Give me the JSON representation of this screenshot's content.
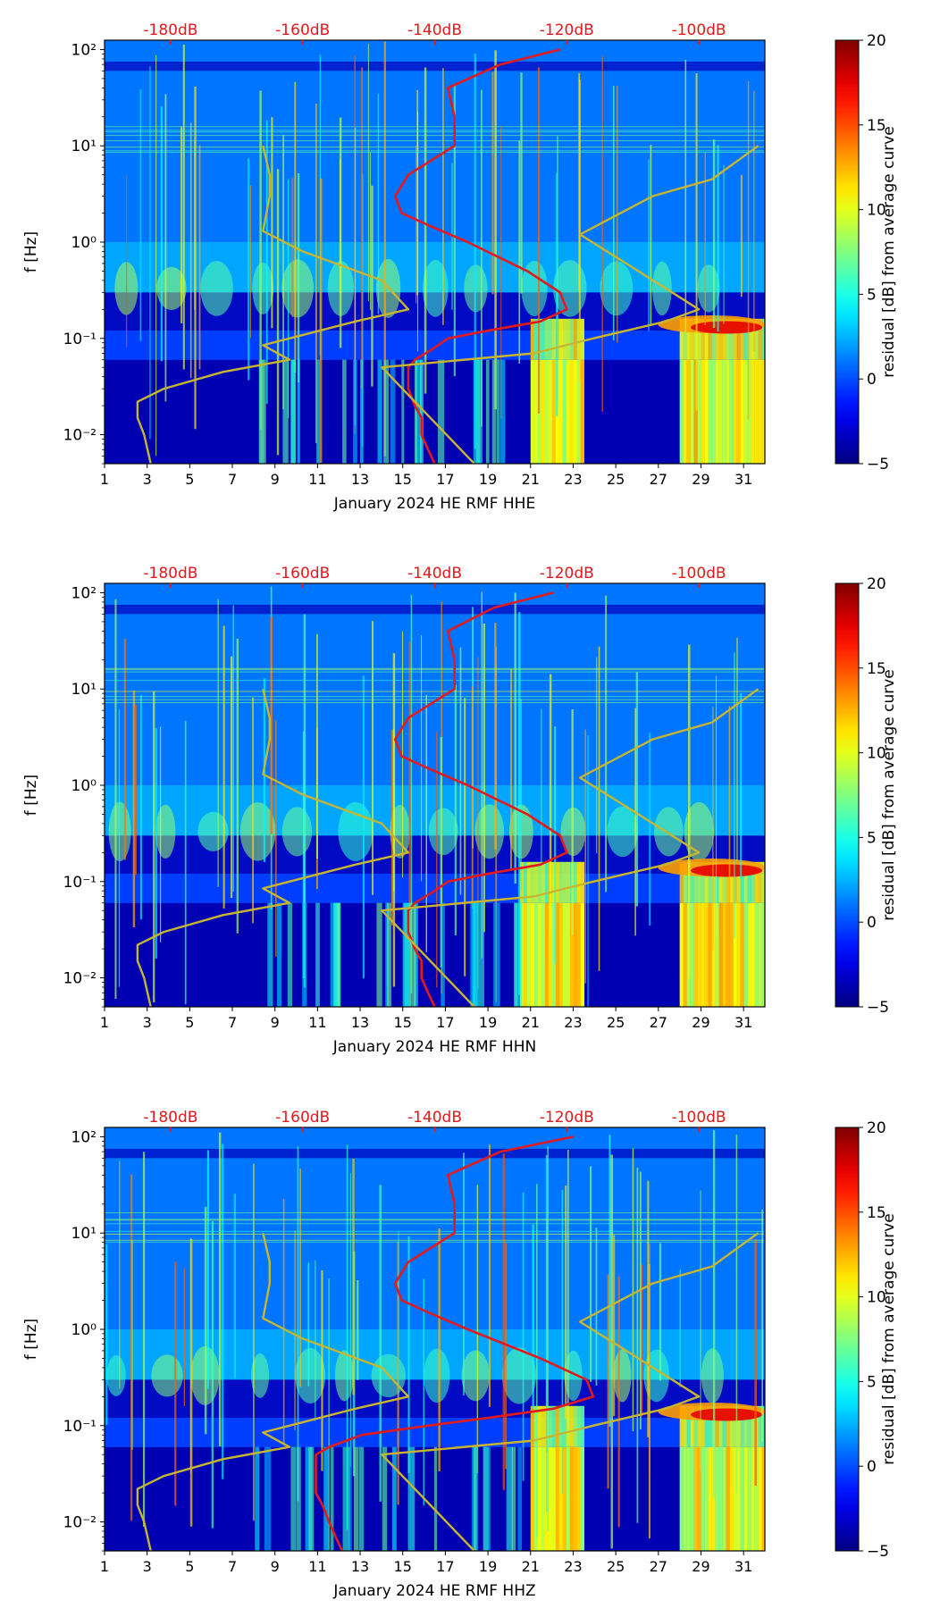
{
  "chart_data": [
    {
      "type": "heatmap",
      "title": "",
      "xlabel": "January 2024 HE RMF  HHE",
      "ylabel": "f [Hz]",
      "xlim": [
        1,
        32
      ],
      "ylim": [
        0.005,
        125
      ],
      "yscale": "log",
      "x_ticks": [
        1,
        3,
        5,
        7,
        9,
        11,
        13,
        15,
        17,
        19,
        21,
        23,
        25,
        27,
        29,
        31
      ],
      "y_ticks": [
        {
          "value": 0.01,
          "label": "10⁻²"
        },
        {
          "value": 0.1,
          "label": "10⁻¹"
        },
        {
          "value": 1,
          "label": "10⁰"
        },
        {
          "value": 10,
          "label": "10¹"
        },
        {
          "value": 100,
          "label": "10²"
        }
      ],
      "top_axis": {
        "ticks": [
          -180,
          -160,
          -140,
          -120,
          -100
        ],
        "labels": [
          "-180dB",
          "-160dB",
          "-140dB",
          "-120dB",
          "-100dB"
        ],
        "range": [
          -190,
          -90
        ],
        "color": "#e31a1c"
      },
      "colorbar": {
        "label": "residual [dB] from average curve",
        "min": -5,
        "max": 20,
        "ticks": [
          -5,
          0,
          5,
          10,
          15,
          20
        ],
        "colormap": "jet"
      },
      "high_noise_days": [
        [
          21,
          23.5
        ],
        [
          28,
          32
        ]
      ],
      "curves": [
        {
          "role": "average",
          "color": "#e31a1c",
          "f": [
            100,
            70,
            40,
            20,
            10,
            5,
            3,
            2,
            1.5,
            1,
            0.5,
            0.3,
            0.2,
            0.15,
            0.12,
            0.1,
            0.08,
            0.06,
            0.05,
            0.04,
            0.03,
            0.02,
            0.015,
            0.01,
            0.007,
            0.005
          ],
          "db": [
            -121,
            -130,
            -138,
            -137,
            -137,
            -144,
            -146,
            -145,
            -141,
            -135,
            -126,
            -121,
            -120,
            -124,
            -132,
            -138,
            -140,
            -143,
            -144,
            -144,
            -144,
            -143,
            -142,
            -142,
            -141,
            -140
          ]
        },
        {
          "role": "model",
          "color": "#c8b531",
          "f": [
            10,
            5,
            3,
            1.3,
            0.8,
            0.4,
            0.2,
            0.15,
            0.1,
            0.085,
            0.06,
            0.045,
            0.03,
            0.022,
            0.015,
            0.01,
            0.005
          ],
          "db": [
            -166,
            -165,
            -165,
            -166,
            -160,
            -148,
            -144,
            -152,
            -162,
            -166,
            -162,
            -172,
            -181,
            -185,
            -185,
            -184,
            -183
          ]
        },
        {
          "role": "model",
          "color": "#c8b531",
          "f": [
            10,
            4.5,
            3,
            1.2,
            0.6,
            0.2,
            0.15,
            0.1,
            0.07,
            0.05,
            0.005
          ],
          "db": [
            -91,
            -98,
            -107,
            -118,
            -111,
            -100,
            -105,
            -116,
            -125,
            -148,
            -134
          ]
        }
      ]
    },
    {
      "type": "heatmap",
      "title": "",
      "xlabel": "January 2024 HE RMF  HHN",
      "ylabel": "f [Hz]",
      "xlim": [
        1,
        32
      ],
      "ylim": [
        0.005,
        125
      ],
      "yscale": "log",
      "x_ticks": [
        1,
        3,
        5,
        7,
        9,
        11,
        13,
        15,
        17,
        19,
        21,
        23,
        25,
        27,
        29,
        31
      ],
      "y_ticks": [
        {
          "value": 0.01,
          "label": "10⁻²"
        },
        {
          "value": 0.1,
          "label": "10⁻¹"
        },
        {
          "value": 1,
          "label": "10⁰"
        },
        {
          "value": 10,
          "label": "10¹"
        },
        {
          "value": 100,
          "label": "10²"
        }
      ],
      "top_axis": {
        "ticks": [
          -180,
          -160,
          -140,
          -120,
          -100
        ],
        "labels": [
          "-180dB",
          "-160dB",
          "-140dB",
          "-120dB",
          "-100dB"
        ],
        "range": [
          -190,
          -90
        ],
        "color": "#e31a1c"
      },
      "colorbar": {
        "label": "residual [dB] from average curve",
        "min": -5,
        "max": 20,
        "ticks": [
          -5,
          0,
          5,
          10,
          15,
          20
        ],
        "colormap": "jet"
      },
      "high_noise_days": [
        [
          20.5,
          23.5
        ],
        [
          28,
          32
        ]
      ],
      "curves": [
        {
          "role": "average",
          "color": "#e31a1c",
          "f": [
            100,
            70,
            40,
            20,
            10,
            5,
            3,
            2,
            1.5,
            1,
            0.5,
            0.3,
            0.2,
            0.15,
            0.12,
            0.1,
            0.08,
            0.06,
            0.05,
            0.04,
            0.03,
            0.02,
            0.015,
            0.01,
            0.007,
            0.005
          ],
          "db": [
            -122,
            -131,
            -138,
            -137,
            -137,
            -144,
            -146,
            -145,
            -141,
            -135,
            -126,
            -121,
            -120,
            -124,
            -132,
            -138,
            -140,
            -143,
            -144,
            -144,
            -144,
            -143,
            -142,
            -142,
            -141,
            -140
          ]
        },
        {
          "role": "model",
          "color": "#c8b531",
          "f": [
            10,
            5,
            3,
            1.3,
            0.8,
            0.4,
            0.2,
            0.15,
            0.1,
            0.085,
            0.06,
            0.045,
            0.03,
            0.022,
            0.015,
            0.01,
            0.005
          ],
          "db": [
            -166,
            -165,
            -165,
            -166,
            -160,
            -148,
            -144,
            -152,
            -162,
            -166,
            -162,
            -172,
            -181,
            -185,
            -185,
            -184,
            -183
          ]
        },
        {
          "role": "model",
          "color": "#c8b531",
          "f": [
            10,
            4.5,
            3,
            1.2,
            0.6,
            0.2,
            0.15,
            0.1,
            0.07,
            0.05,
            0.005
          ],
          "db": [
            -91,
            -98,
            -107,
            -118,
            -111,
            -100,
            -105,
            -116,
            -125,
            -148,
            -134
          ]
        }
      ]
    },
    {
      "type": "heatmap",
      "title": "",
      "xlabel": "January 2024 HE RMF  HHZ",
      "ylabel": "f [Hz]",
      "xlim": [
        1,
        32
      ],
      "ylim": [
        0.005,
        125
      ],
      "yscale": "log",
      "x_ticks": [
        1,
        3,
        5,
        7,
        9,
        11,
        13,
        15,
        17,
        19,
        21,
        23,
        25,
        27,
        29,
        31
      ],
      "y_ticks": [
        {
          "value": 0.01,
          "label": "10⁻²"
        },
        {
          "value": 0.1,
          "label": "10⁻¹"
        },
        {
          "value": 1,
          "label": "10⁰"
        },
        {
          "value": 10,
          "label": "10¹"
        },
        {
          "value": 100,
          "label": "10²"
        }
      ],
      "top_axis": {
        "ticks": [
          -180,
          -160,
          -140,
          -120,
          -100
        ],
        "labels": [
          "-180dB",
          "-160dB",
          "-140dB",
          "-120dB",
          "-100dB"
        ],
        "range": [
          -190,
          -90
        ],
        "color": "#e31a1c"
      },
      "colorbar": {
        "label": "residual [dB] from average curve",
        "min": -5,
        "max": 20,
        "ticks": [
          -5,
          0,
          5,
          10,
          15,
          20
        ],
        "colormap": "jet"
      },
      "high_noise_days": [
        [
          21,
          23.5
        ],
        [
          28,
          32
        ]
      ],
      "curves": [
        {
          "role": "average",
          "color": "#e31a1c",
          "f": [
            100,
            70,
            40,
            20,
            10,
            5,
            3,
            2,
            1.5,
            1,
            0.5,
            0.3,
            0.2,
            0.15,
            0.12,
            0.1,
            0.08,
            0.06,
            0.05,
            0.04,
            0.03,
            0.02,
            0.015,
            0.01,
            0.007,
            0.005
          ],
          "db": [
            -119,
            -130,
            -138,
            -137,
            -137,
            -144,
            -146,
            -145,
            -141,
            -135,
            -124,
            -117,
            -116,
            -122,
            -132,
            -141,
            -151,
            -156,
            -158,
            -158,
            -158,
            -158,
            -157,
            -156,
            -155,
            -154
          ]
        },
        {
          "role": "model",
          "color": "#c8b531",
          "f": [
            10,
            5,
            3,
            1.3,
            0.8,
            0.4,
            0.2,
            0.15,
            0.1,
            0.085,
            0.06,
            0.045,
            0.03,
            0.022,
            0.015,
            0.01,
            0.005
          ],
          "db": [
            -166,
            -165,
            -165,
            -166,
            -160,
            -148,
            -144,
            -152,
            -162,
            -166,
            -162,
            -172,
            -181,
            -185,
            -185,
            -184,
            -183
          ]
        },
        {
          "role": "model",
          "color": "#c8b531",
          "f": [
            10,
            4.5,
            3,
            1.2,
            0.6,
            0.2,
            0.15,
            0.1,
            0.07,
            0.05,
            0.005
          ],
          "db": [
            -91,
            -98,
            -107,
            -118,
            -111,
            -100,
            -105,
            -116,
            -125,
            -148,
            -134
          ]
        }
      ]
    }
  ]
}
